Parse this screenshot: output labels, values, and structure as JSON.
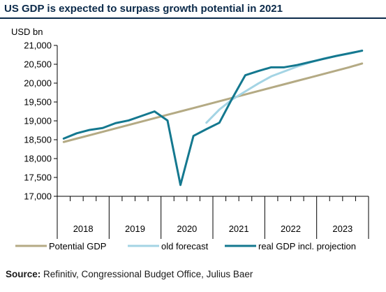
{
  "title": "US GDP is expected to surpass growth potential in 2021",
  "source": {
    "label": "Source:",
    "text": "Refinitiv, Congressional Budget Office, Julius Baer"
  },
  "colors": {
    "title": "#0b2a4a",
    "potential": "#b4aa84",
    "old_forecast": "#a4d4e4",
    "real": "#14788f"
  },
  "chart_data": {
    "type": "line",
    "title": "US GDP is expected to surpass growth potential in 2021",
    "ylabel": "USD bn",
    "ylim": [
      17000,
      21000
    ],
    "yticks": [
      17000,
      17500,
      18000,
      18500,
      19000,
      19500,
      20000,
      20500,
      21000
    ],
    "ytick_labels": [
      "17,000",
      "17,500",
      "18,000",
      "18,500",
      "19,000",
      "19,500",
      "20,000",
      "20,500",
      "21,000"
    ],
    "x_quarters": [
      "2018Q1",
      "2018Q2",
      "2018Q3",
      "2018Q4",
      "2019Q1",
      "2019Q2",
      "2019Q3",
      "2019Q4",
      "2020Q1",
      "2020Q2",
      "2020Q3",
      "2020Q4",
      "2021Q1",
      "2021Q2",
      "2021Q3",
      "2021Q4",
      "2022Q1",
      "2022Q2",
      "2022Q3",
      "2022Q4",
      "2023Q1",
      "2023Q2",
      "2023Q3",
      "2023Q4"
    ],
    "year_labels": [
      "2018",
      "2019",
      "2020",
      "2021",
      "2022",
      "2023"
    ],
    "grid": false,
    "legend_position": "bottom",
    "series": [
      {
        "name": "Potential GDP",
        "color": "#b4aa84",
        "values": [
          18440,
          18530,
          18620,
          18710,
          18800,
          18890,
          18980,
          19070,
          19160,
          19250,
          19340,
          19430,
          19520,
          19610,
          19700,
          19790,
          19880,
          19970,
          20060,
          20150,
          20240,
          20330,
          20420,
          20520
        ]
      },
      {
        "name": "old forecast",
        "color": "#a4d4e4",
        "values": [
          null,
          null,
          null,
          null,
          null,
          null,
          null,
          null,
          null,
          null,
          null,
          18950,
          19300,
          19570,
          19780,
          19990,
          20180,
          20310,
          20440,
          20550,
          20650,
          20720,
          20780,
          20860
        ]
      },
      {
        "name": "real GDP incl. projection",
        "color": "#14788f",
        "values": [
          18530,
          18670,
          18760,
          18810,
          18940,
          19010,
          19130,
          19250,
          19010,
          17300,
          18600,
          18780,
          18950,
          19600,
          20210,
          20320,
          20420,
          20420,
          20480,
          20560,
          20640,
          20720,
          20790,
          20860
        ]
      }
    ]
  }
}
